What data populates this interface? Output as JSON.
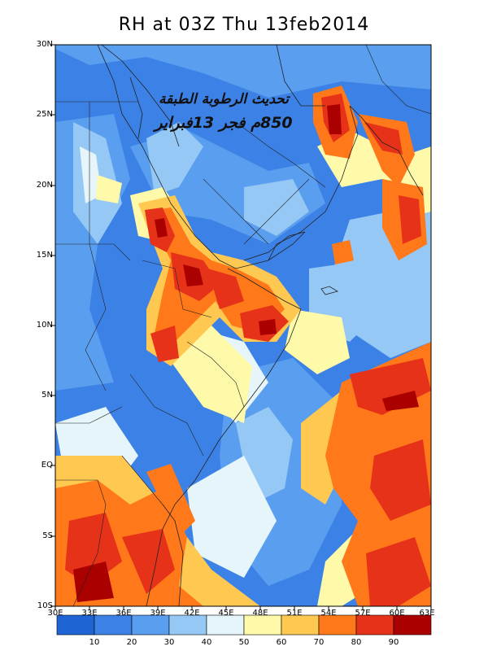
{
  "title": "RH at 03Z Thu 13feb2014",
  "annotation": {
    "line1": "تحديث الرطوبة الطبقة",
    "line2": "850م فجر 13فبراير"
  },
  "latitude_labels": [
    "30N",
    "25N",
    "20N",
    "15N",
    "10N",
    "5N",
    "EQ",
    "5S",
    "10S"
  ],
  "longitude_labels": [
    "30E",
    "33E",
    "36E",
    "39E",
    "42E",
    "45E",
    "48E",
    "51E",
    "54E",
    "57E",
    "60E",
    "63E"
  ],
  "colorbar": {
    "labels": [
      "10",
      "20",
      "30",
      "40",
      "50",
      "60",
      "70",
      "80",
      "90"
    ],
    "colors": [
      "#1e64d2",
      "#3c82e6",
      "#5a9ef0",
      "#96c8f5",
      "#e6f5fa",
      "#fffaaa",
      "#ffc850",
      "#ff7819",
      "#e63219",
      "#aa0000"
    ]
  }
}
